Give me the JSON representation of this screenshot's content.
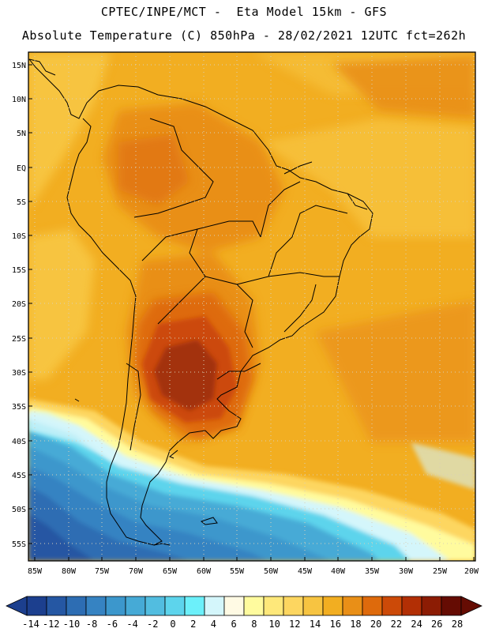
{
  "header": {
    "line1": "CPTEC/INPE/MCT -  Eta Model 15km - GFS",
    "line2": "Absolute Temperature (C) 850hPa - 28/02/2021 12UTC fct=262h"
  },
  "map": {
    "lat_labels": [
      "15N",
      "10N",
      "5N",
      "EQ",
      "5S",
      "10S",
      "15S",
      "20S",
      "25S",
      "30S",
      "35S",
      "40S",
      "45S",
      "50S",
      "55S"
    ],
    "lon_labels": [
      "85W",
      "80W",
      "75W",
      "70W",
      "65W",
      "60W",
      "55W",
      "50W",
      "45W",
      "40W",
      "35W",
      "30W",
      "25W",
      "20W"
    ]
  },
  "colorbar": {
    "labels": [
      "-14",
      "-12",
      "-10",
      "-8",
      "-6",
      "-4",
      "-2",
      "0",
      "2",
      "4",
      "6",
      "8",
      "10",
      "12",
      "14",
      "16",
      "18",
      "20",
      "22",
      "24",
      "26",
      "28"
    ],
    "colors": [
      "#1c3f8e",
      "#2557a3",
      "#2d6db3",
      "#3683c2",
      "#3c97cc",
      "#46aad6",
      "#52bde0",
      "#5dd4ec",
      "#6cf0fa",
      "#d4f6fb",
      "#fffae4",
      "#fffb9e",
      "#fee87a",
      "#fdd660",
      "#f7c441",
      "#f2ae21",
      "#e98f17",
      "#de6a0c",
      "#cc4a08",
      "#b22f05",
      "#8c1c04",
      "#650c03"
    ]
  },
  "legend_icon": "color-scale-arrows"
}
